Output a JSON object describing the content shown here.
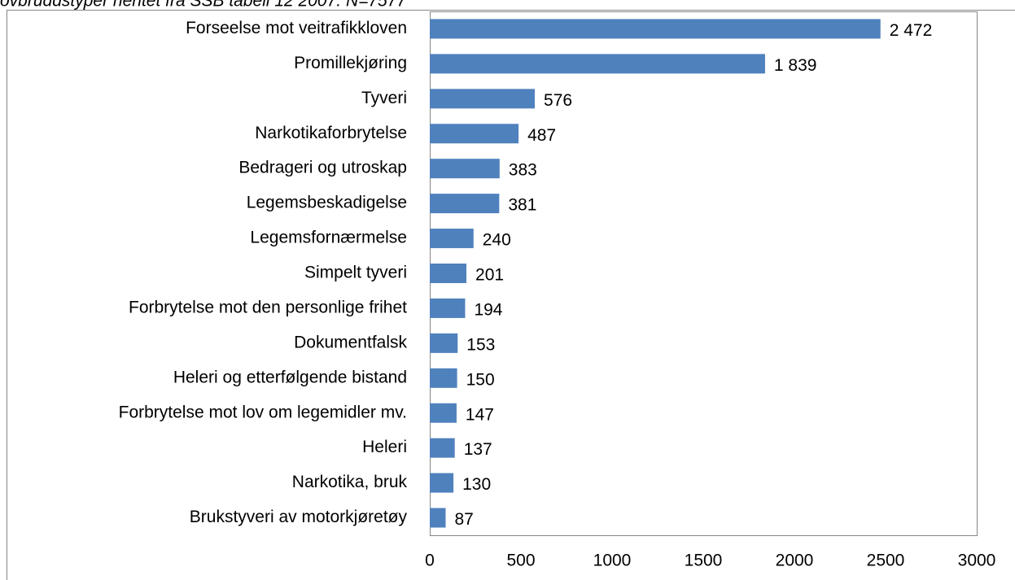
{
  "chart_data": {
    "type": "bar",
    "orientation": "horizontal",
    "title": "ovbruddstyper hentet fra SSB tabell 12 2007. N=7577",
    "categories": [
      "Forseelse mot veitrafikkloven",
      "Promillekjøring",
      "Tyveri",
      "Narkotikaforbrytelse",
      "Bedrageri og utroskap",
      "Legemsbeskadigelse",
      "Legemsfornærmelse",
      "Simpelt tyveri",
      "Forbrytelse mot den personlige frihet",
      "Dokumentfalsk",
      "Heleri og etterfølgende bistand",
      "Forbrytelse mot lov om legemidler mv.",
      "Heleri",
      "Narkotika, bruk",
      "Brukstyveri av motorkjøretøy"
    ],
    "values": [
      2472,
      1839,
      576,
      487,
      383,
      381,
      240,
      201,
      194,
      153,
      150,
      147,
      137,
      130,
      87
    ],
    "value_labels": [
      "2 472",
      "1 839",
      "576",
      "487",
      "383",
      "381",
      "240",
      "201",
      "194",
      "153",
      "150",
      "147",
      "137",
      "130",
      "87"
    ],
    "color": "#4f81bd",
    "xlim": [
      0,
      3000
    ],
    "xticks": [
      0,
      500,
      1000,
      1500,
      2000,
      2500,
      3000
    ]
  }
}
